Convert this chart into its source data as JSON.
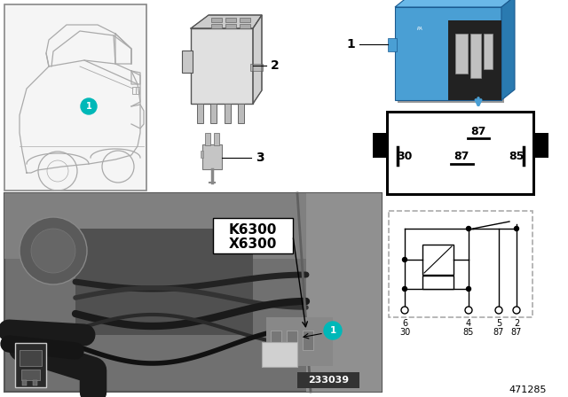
{
  "bg_color": "#ffffff",
  "diagram_number": "471285",
  "photo_number": "233039",
  "callout_circle_color": "#00b8b8",
  "callout_text_color": "#ffffff",
  "relay_blue": "#4a9fd4",
  "relay_blue_dark": "#2a7ab0",
  "relay_blue_light": "#6ab8e8",
  "component_labels": [
    "K6300",
    "X6300"
  ],
  "pin_top_labels": [
    "87",
    "30",
    "87",
    "85"
  ],
  "pin_bottom_nums": [
    "6",
    "4",
    "5",
    "2"
  ],
  "pin_bottom_labels": [
    "30",
    "85",
    "87",
    "87"
  ],
  "photo_bg": "#888888",
  "car_box_bg": "#f5f5f5",
  "car_line_color": "#aaaaaa",
  "label_2_color": "#000000",
  "label_3_color": "#000000"
}
